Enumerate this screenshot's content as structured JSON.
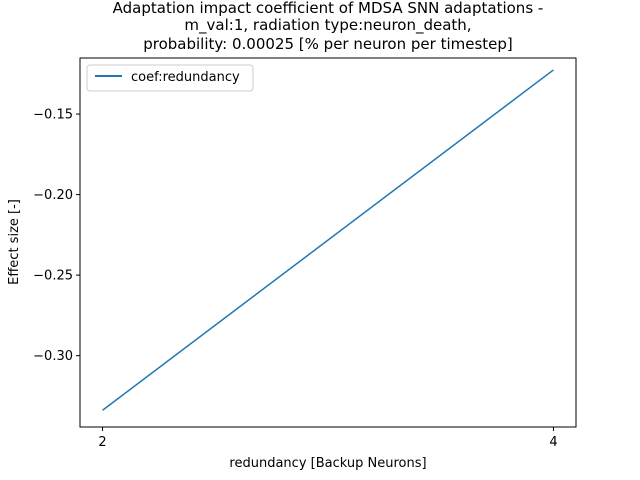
{
  "chart_data": {
    "type": "line",
    "title_lines": [
      "Adaptation impact coefficient of MDSA SNN adaptations -",
      "m_val:1, radiation type:neuron_death,",
      "probability: 0.00025 [% per neuron per timestep]"
    ],
    "xlabel": "redundancy [Backup Neurons]",
    "ylabel": "Effect size [-]",
    "x_ticks": [
      2,
      4
    ],
    "x_tick_labels": [
      "2",
      "4"
    ],
    "y_ticks": [
      -0.3,
      -0.25,
      -0.2,
      -0.15
    ],
    "y_tick_labels": [
      "−0.30",
      "−0.25",
      "−0.20",
      "−0.15"
    ],
    "xlim": [
      1.9,
      4.1
    ],
    "ylim": [
      -0.3443,
      -0.1152
    ],
    "grid": false,
    "legend_position": "top-left",
    "series": [
      {
        "name": "coef:redundancy",
        "color": "#1f77b4",
        "x": [
          2,
          4
        ],
        "y": [
          -0.3339,
          -0.1226
        ]
      }
    ]
  }
}
